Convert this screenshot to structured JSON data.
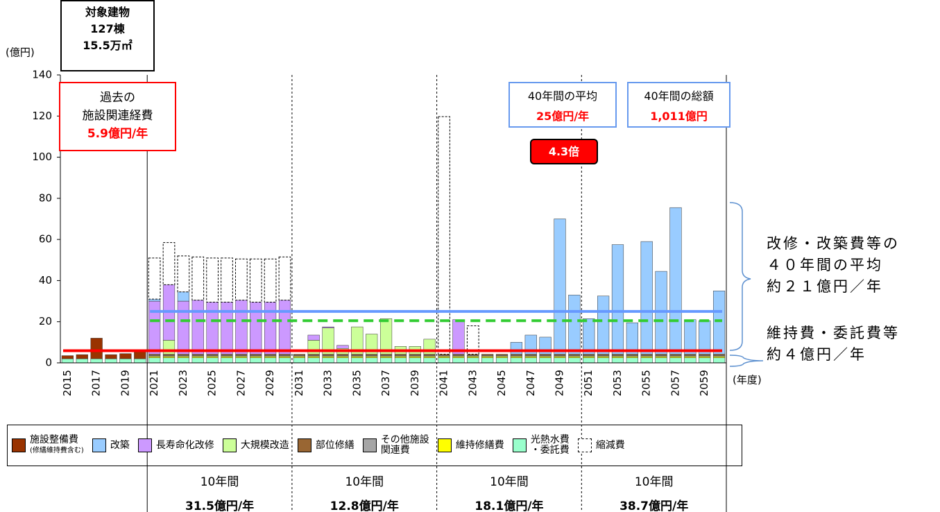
{
  "chart_data": {
    "type": "stacked_bar",
    "y_unit": "(億円)",
    "x_unit": "(年度)",
    "ylim": [
      0,
      140
    ],
    "yticks": [
      0,
      20,
      40,
      60,
      80,
      100,
      120,
      140
    ],
    "categories": [
      "2015",
      null,
      "2017",
      null,
      "2019",
      null,
      "2021",
      null,
      "2023",
      null,
      "2025",
      null,
      "2027",
      null,
      "2029",
      null,
      "2031",
      null,
      "2033",
      null,
      "2035",
      null,
      "2037",
      null,
      "2039",
      null,
      "2041",
      null,
      "2043",
      null,
      "2045",
      null,
      "2047",
      null,
      "2049",
      null,
      "2051",
      null,
      "2053",
      null,
      "2055",
      null,
      "2057",
      null,
      "2059",
      null
    ],
    "series": [
      {
        "name": "施設整備費",
        "note": "(修繕維持費含む)",
        "color": "#993300",
        "values": [
          1.5,
          2,
          10,
          2,
          2.5,
          3.5,
          null,
          null,
          null,
          null,
          null,
          null,
          null,
          null,
          null,
          null,
          null,
          null,
          null,
          null,
          null,
          null,
          null,
          null,
          null,
          null,
          null,
          null,
          null,
          null,
          null,
          null,
          null,
          null,
          null,
          null,
          null,
          null,
          null,
          null,
          null,
          null,
          null,
          null,
          null,
          null
        ]
      },
      {
        "name": "改築",
        "color": "#99ccff",
        "values": [
          null,
          null,
          null,
          null,
          null,
          null,
          1,
          null,
          4.5,
          null,
          null,
          null,
          null,
          null,
          null,
          null,
          null,
          null,
          null,
          null,
          null,
          null,
          null,
          null,
          null,
          null,
          null,
          null,
          null,
          null,
          null,
          5.8,
          9.3,
          8.3,
          65.8,
          28.8,
          17.3,
          28.3,
          53.3,
          15.3,
          54.8,
          40.3,
          71.3,
          16.8,
          16.3,
          30.8
        ]
      },
      {
        "name": "長寿命化改修",
        "color": "#cc99ff",
        "values": [
          null,
          null,
          null,
          null,
          null,
          null,
          25.8,
          27,
          25.8,
          26.3,
          25.3,
          25.3,
          26.3,
          25.3,
          25.3,
          26.3,
          null,
          2.5,
          0.5,
          1.5,
          null,
          null,
          null,
          null,
          null,
          null,
          null,
          16.8,
          null,
          null,
          null,
          null,
          null,
          null,
          null,
          null,
          null,
          null,
          null,
          null,
          null,
          null,
          null,
          null,
          null,
          null
        ]
      },
      {
        "name": "大規模改造",
        "color": "#ccff99",
        "values": [
          null,
          null,
          null,
          null,
          null,
          null,
          null,
          6.8,
          null,
          null,
          null,
          null,
          null,
          null,
          null,
          null,
          null,
          6.8,
          12.8,
          2.8,
          13.3,
          9.8,
          17.3,
          3.8,
          3.8,
          7.3,
          null,
          null,
          null,
          null,
          null,
          null,
          null,
          null,
          null,
          null,
          null,
          null,
          null,
          null,
          null,
          null,
          null,
          null,
          null,
          null
        ]
      },
      {
        "name": "部位修繕",
        "color": "#996633",
        "values": [
          null,
          null,
          null,
          null,
          null,
          null,
          0.6,
          0.6,
          0.6,
          0.6,
          0.6,
          0.6,
          0.6,
          0.6,
          0.6,
          0.6,
          0.6,
          0.6,
          0.6,
          0.6,
          0.6,
          0.6,
          0.6,
          0.6,
          0.6,
          0.6,
          0.6,
          0.6,
          0.6,
          0.6,
          0.6,
          0.6,
          0.6,
          0.6,
          0.6,
          0.6,
          0.6,
          0.6,
          0.6,
          0.6,
          0.6,
          0.6,
          0.6,
          0.6,
          0.6,
          0.6
        ]
      },
      {
        "name": "その他施設\n関連費",
        "color": "#a6a6a6",
        "values": [
          null,
          null,
          null,
          null,
          null,
          null,
          0.5,
          0.5,
          0.5,
          0.5,
          0.5,
          0.5,
          0.5,
          0.5,
          0.5,
          0.5,
          0.5,
          0.5,
          0.5,
          0.5,
          0.5,
          0.5,
          0.5,
          0.5,
          0.5,
          0.5,
          0.5,
          0.5,
          0.5,
          0.5,
          0.5,
          0.5,
          0.5,
          0.5,
          0.5,
          0.5,
          0.5,
          0.5,
          0.5,
          0.5,
          0.5,
          0.5,
          0.5,
          0.5,
          0.5,
          0.5
        ]
      },
      {
        "name": "維持修繕費",
        "color": "#ffff00",
        "values": [
          null,
          null,
          null,
          null,
          null,
          null,
          0.6,
          0.6,
          0.6,
          0.6,
          0.6,
          0.6,
          0.6,
          0.6,
          0.6,
          0.6,
          0.6,
          0.6,
          0.6,
          0.6,
          0.6,
          0.6,
          0.6,
          0.6,
          0.6,
          0.6,
          0.6,
          0.6,
          0.6,
          0.6,
          0.6,
          0.6,
          0.6,
          0.6,
          0.6,
          0.6,
          0.6,
          0.6,
          0.6,
          0.6,
          0.6,
          0.6,
          0.6,
          0.6,
          0.6,
          0.6
        ]
      },
      {
        "name": "光熱水費\n・委託費",
        "color": "#99ffcc",
        "values": [
          2,
          2,
          2,
          2,
          2,
          2,
          2.5,
          2.5,
          2.5,
          2.5,
          2.5,
          2.5,
          2.5,
          2.5,
          2.5,
          2.5,
          2.5,
          2.5,
          2.5,
          2.5,
          2.5,
          2.5,
          2.5,
          2.5,
          2.5,
          2.5,
          2.5,
          2.5,
          2.5,
          2.5,
          2.5,
          2.5,
          2.5,
          2.5,
          2.5,
          2.5,
          2.5,
          2.5,
          2.5,
          2.5,
          2.5,
          2.5,
          2.5,
          2.5,
          2.5,
          2.5
        ]
      },
      {
        "name": "縮減費",
        "color": "#ffffff",
        "outline": true,
        "values": [
          null,
          null,
          null,
          null,
          null,
          null,
          20,
          20.5,
          17.5,
          21,
          21.5,
          21.5,
          20,
          21,
          21,
          21,
          null,
          null,
          null,
          null,
          null,
          null,
          null,
          null,
          null,
          null,
          115.5,
          null,
          13.8,
          null,
          null,
          null,
          null,
          null,
          null,
          null,
          null,
          null,
          null,
          null,
          null,
          null,
          null,
          null,
          null,
          null
        ]
      }
    ],
    "reference_lines": [
      {
        "value": 5.9,
        "color": "#ff0000",
        "start": "2015"
      },
      {
        "value": 25,
        "color": "#6699ff",
        "start": "2021"
      },
      {
        "value": 20.5,
        "color": "#33cc33",
        "start": "2021",
        "dashed": true
      }
    ],
    "dividers": [
      "2021",
      "2031",
      "2041",
      "2051"
    ],
    "target_box": [
      "対象建物",
      "127棟",
      "15.5万㎡"
    ],
    "past_box": [
      "過去の",
      "施設関連経費",
      "5.9億円/年"
    ],
    "average_box": [
      "40年間の平均",
      "25億円/年"
    ],
    "total_box": [
      "40年間の総額",
      "1,011億円"
    ],
    "ratio": "4.3倍",
    "renovation_note": [
      "改修・改築費等の",
      "４０年間の平均",
      "約２１億円／年"
    ],
    "maintenance_note": [
      "維持費・委託費等",
      "約４億円／年"
    ],
    "period_summary": [
      {
        "span": "10年間",
        "amount": "31.5億円/年"
      },
      {
        "span": "10年間",
        "amount": "12.8億円/年"
      },
      {
        "span": "10年間",
        "amount": "18.1億円/年"
      },
      {
        "span": "10年間",
        "amount": "38.7億円/年"
      }
    ]
  }
}
